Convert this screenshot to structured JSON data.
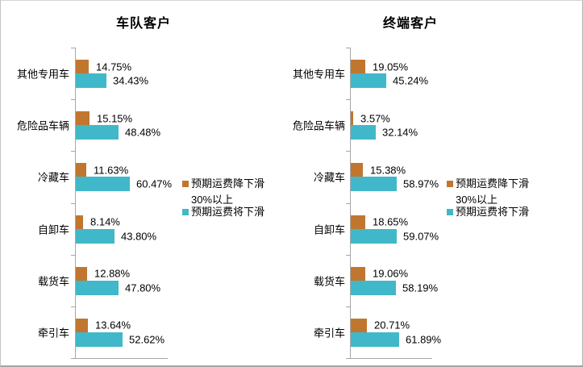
{
  "window": {
    "background": "#ffffff",
    "border_color": "#a5a5a5"
  },
  "colors": {
    "axis": "#a6a6a6",
    "text": "#000000",
    "series1": "#c1762f",
    "series2": "#41b8c9"
  },
  "chart_data": [
    {
      "type": "bar",
      "orientation": "horizontal",
      "title": "车队客户",
      "categories": [
        "其他专用车",
        "危险品车辆",
        "冷藏车",
        "自卸车",
        "载货车",
        "牵引车"
      ],
      "xlim": [
        0,
        100
      ],
      "grid": false,
      "legend_position": "right-middle",
      "series": [
        {
          "name": "预期运费降下滑30%以上",
          "color": "#c1762f",
          "values": [
            14.75,
            15.15,
            11.63,
            8.14,
            12.88,
            13.64
          ],
          "labels": [
            "14.75%",
            "15.15%",
            "11.63%",
            "8.14%",
            "12.88%",
            "13.64%"
          ]
        },
        {
          "name": "预期运费将下滑",
          "color": "#41b8c9",
          "values": [
            34.43,
            48.48,
            60.47,
            43.8,
            47.8,
            52.62
          ],
          "labels": [
            "34.43%",
            "48.48%",
            "60.47%",
            "43.80%",
            "47.80%",
            "52.62%"
          ]
        }
      ],
      "legend_rows": [
        {
          "swatch": "series1",
          "text": "预期运费降下滑"
        },
        {
          "swatch": null,
          "text": "30%以上"
        },
        {
          "swatch": "series2",
          "text": "预期运费将下滑"
        }
      ]
    },
    {
      "type": "bar",
      "orientation": "horizontal",
      "title": "终端客户",
      "categories": [
        "其他专用车",
        "危险品车辆",
        "冷藏车",
        "自卸车",
        "载货车",
        "牵引车"
      ],
      "xlim": [
        0,
        100
      ],
      "grid": false,
      "legend_position": "right-middle",
      "series": [
        {
          "name": "预期运费降下滑30%以上",
          "color": "#c1762f",
          "values": [
            19.05,
            3.57,
            15.38,
            18.65,
            19.06,
            20.71
          ],
          "labels": [
            "19.05%",
            "3.57%",
            "15.38%",
            "18.65%",
            "19.06%",
            "20.71%"
          ]
        },
        {
          "name": "预期运费将下滑",
          "color": "#41b8c9",
          "values": [
            45.24,
            32.14,
            58.97,
            59.07,
            58.19,
            61.89
          ],
          "labels": [
            "45.24%",
            "32.14%",
            "58.97%",
            "59.07%",
            "58.19%",
            "61.89%"
          ]
        }
      ],
      "legend_rows": [
        {
          "swatch": "series1",
          "text": "预期运费降下滑"
        },
        {
          "swatch": null,
          "text": "30%以上"
        },
        {
          "swatch": "series2",
          "text": "预期运费将下滑"
        }
      ]
    }
  ]
}
